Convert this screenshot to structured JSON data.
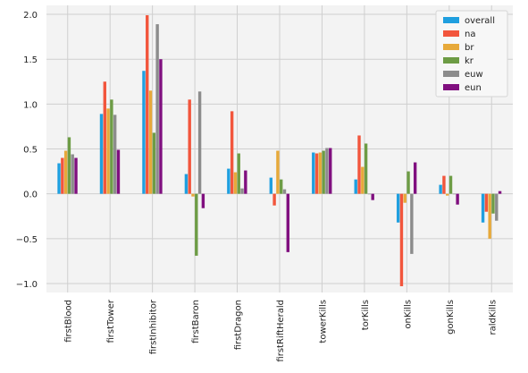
{
  "chart_data": {
    "type": "bar",
    "title": "",
    "xlabel": "",
    "ylabel": "",
    "ylim": [
      -1.1,
      2.1
    ],
    "grid": true,
    "legend_position": "top-right",
    "categories": [
      "firstBlood",
      "firstTower",
      "firstInhibitor",
      "firstBaron",
      "firstDragon",
      "firstRiftHerald",
      "towerKills",
      "torKills",
      "onKills",
      "gonKills",
      "raldKills"
    ],
    "y_ticks": [
      -1.0,
      -0.5,
      0.0,
      0.5,
      1.0,
      1.5,
      2.0
    ],
    "y_tick_labels": [
      "−1.0",
      "−0.5",
      "0.0",
      "0.5",
      "1.0",
      "1.5",
      "2.0"
    ],
    "series": [
      {
        "name": "overall",
        "color": "#1f9fdf",
        "values": [
          0.34,
          0.89,
          1.37,
          0.22,
          0.28,
          0.18,
          0.46,
          0.16,
          -0.32,
          0.1,
          -0.32
        ]
      },
      {
        "name": "na",
        "color": "#f2553c",
        "values": [
          0.4,
          1.25,
          1.99,
          1.05,
          0.92,
          -0.13,
          0.45,
          0.65,
          -1.03,
          0.2,
          -0.2
        ]
      },
      {
        "name": "br",
        "color": "#e7a93a",
        "values": [
          0.48,
          0.95,
          1.15,
          -0.03,
          0.24,
          0.48,
          0.46,
          0.3,
          -0.1,
          -0.02,
          -0.5
        ]
      },
      {
        "name": "kr",
        "color": "#6d9c45",
        "values": [
          0.63,
          1.05,
          0.68,
          -0.69,
          0.45,
          0.16,
          0.48,
          0.56,
          0.25,
          0.2,
          -0.22
        ]
      },
      {
        "name": "euw",
        "color": "#8c8c8c",
        "values": [
          0.44,
          0.88,
          1.89,
          1.14,
          0.06,
          0.05,
          0.51,
          0.0,
          -0.67,
          0.0,
          -0.3
        ]
      },
      {
        "name": "eun",
        "color": "#800f7f",
        "values": [
          0.4,
          0.49,
          1.5,
          -0.16,
          0.26,
          -0.65,
          0.51,
          -0.07,
          0.35,
          -0.12,
          0.03
        ]
      }
    ]
  }
}
